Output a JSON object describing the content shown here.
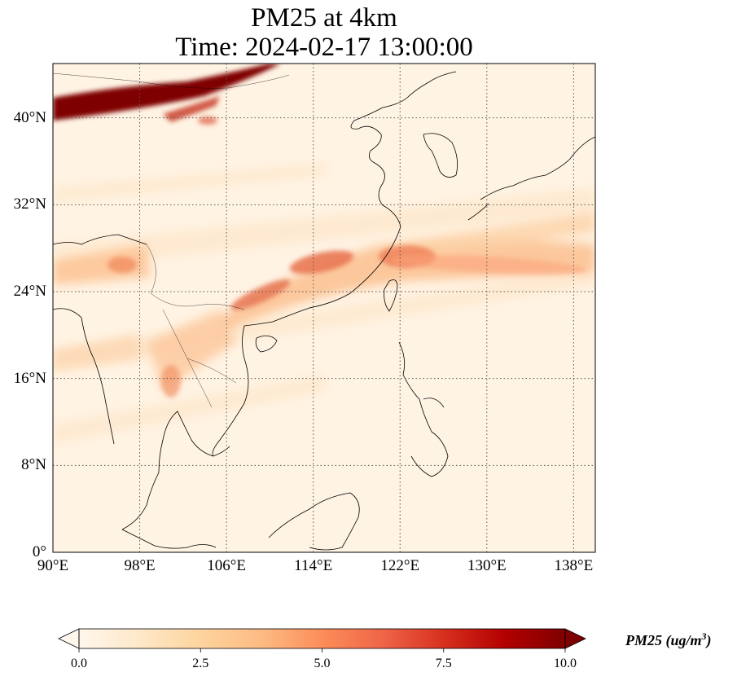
{
  "map": {
    "title_line1": "PM25 at 4km",
    "title_line2": "Time: 2024-02-17 13:00:00",
    "extent": {
      "lon_min": 90,
      "lon_max": 140,
      "lat_min": 0,
      "lat_max": 45
    },
    "lat_ticks": [
      {
        "value": 40,
        "label": "40°N"
      },
      {
        "value": 32,
        "label": "32°N"
      },
      {
        "value": 24,
        "label": "24°N"
      },
      {
        "value": 16,
        "label": "16°N"
      },
      {
        "value": 8,
        "label": "8°N"
      },
      {
        "value": 0,
        "label": "0°"
      }
    ],
    "lon_ticks": [
      {
        "value": 90,
        "label": "90°E"
      },
      {
        "value": 98,
        "label": "98°E"
      },
      {
        "value": 106,
        "label": "106°E"
      },
      {
        "value": 114,
        "label": "114°E"
      },
      {
        "value": 122,
        "label": "122°E"
      },
      {
        "value": 130,
        "label": "130°E"
      },
      {
        "value": 138,
        "label": "138°E"
      }
    ],
    "gridlines": "dotted"
  },
  "colorbar": {
    "label_main": "PM25 (ug/m",
    "label_exp": "3",
    "label_close": ")",
    "colormap": "OrRd",
    "min": 0.0,
    "max": 10.0,
    "extend": "both",
    "ticks": [
      "0.0",
      "2.5",
      "5.0",
      "7.5",
      "10.0"
    ],
    "colors": [
      "#fff7ec",
      "#fee8c8",
      "#fdd49e",
      "#fdbb84",
      "#fc8d59",
      "#ef6548",
      "#d7301f",
      "#b30000",
      "#7f0000"
    ]
  }
}
